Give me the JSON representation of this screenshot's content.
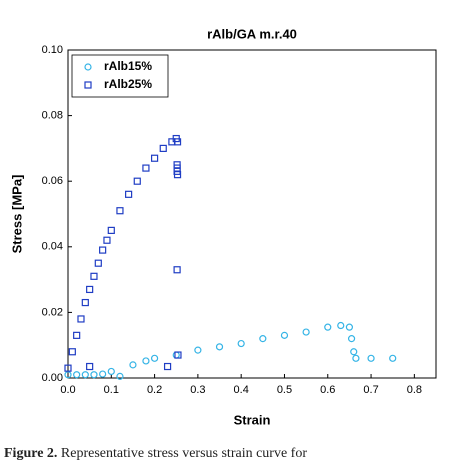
{
  "chart_data": {
    "type": "scatter",
    "title": "rAlb/GA m.r.40",
    "x_label": "Strain",
    "y_label": "Stress [MPa]",
    "xlim": [
      0,
      0.85
    ],
    "ylim": [
      0,
      0.1
    ],
    "xticks": [
      {
        "value": 0,
        "label": "0.0"
      },
      0.1,
      0.2,
      0.3,
      0.4,
      0.5,
      0.6,
      0.7,
      0.8
    ],
    "yticks": [
      {
        "value": 0,
        "label": "0.00"
      },
      0.02,
      0.04,
      0.06,
      0.08,
      {
        "value": 0.1,
        "label": "0.10"
      }
    ],
    "legend": "upper left",
    "series": [
      {
        "name": "rAlb15%",
        "color": "#35b4e6",
        "marker": "circle",
        "x": [
          0,
          0.02,
          0.04,
          0.06,
          0.08,
          0.1,
          0.12,
          0.15,
          0.18,
          0.2,
          0.25,
          0.3,
          0.35,
          0.4,
          0.45,
          0.5,
          0.55,
          0.6,
          0.63,
          0.65,
          0.655,
          0.66,
          0.665,
          0.7,
          0.75
        ],
        "values": [
          0.001,
          0.001,
          0.001,
          0.001,
          0.0012,
          0.002,
          0.0005,
          0.004,
          0.0052,
          0.006,
          0.007,
          0.0085,
          0.0095,
          0.0105,
          0.012,
          0.013,
          0.014,
          0.0155,
          0.016,
          0.0155,
          0.012,
          0.008,
          0.006,
          0.006,
          0.006
        ]
      },
      {
        "name": "rAlb25%",
        "color": "#1f3dc4",
        "marker": "square",
        "x": [
          0,
          0.01,
          0.02,
          0.03,
          0.04,
          0.05,
          0.06,
          0.07,
          0.08,
          0.09,
          0.1,
          0.12,
          0.14,
          0.16,
          0.18,
          0.2,
          0.22,
          0.24,
          0.25,
          0.253,
          0.252,
          0.252,
          0.252,
          0.253,
          0.252,
          0.254,
          0.05,
          0.23
        ],
        "values": [
          0.003,
          0.008,
          0.013,
          0.018,
          0.023,
          0.027,
          0.031,
          0.035,
          0.039,
          0.042,
          0.045,
          0.051,
          0.056,
          0.06,
          0.064,
          0.067,
          0.07,
          0.072,
          0.073,
          0.072,
          0.065,
          0.064,
          0.063,
          0.062,
          0.033,
          0.007,
          0.0035,
          0.0035
        ]
      }
    ]
  },
  "caption": {
    "label": "Figure 2.",
    "text": "Representative stress versus strain curve for"
  }
}
